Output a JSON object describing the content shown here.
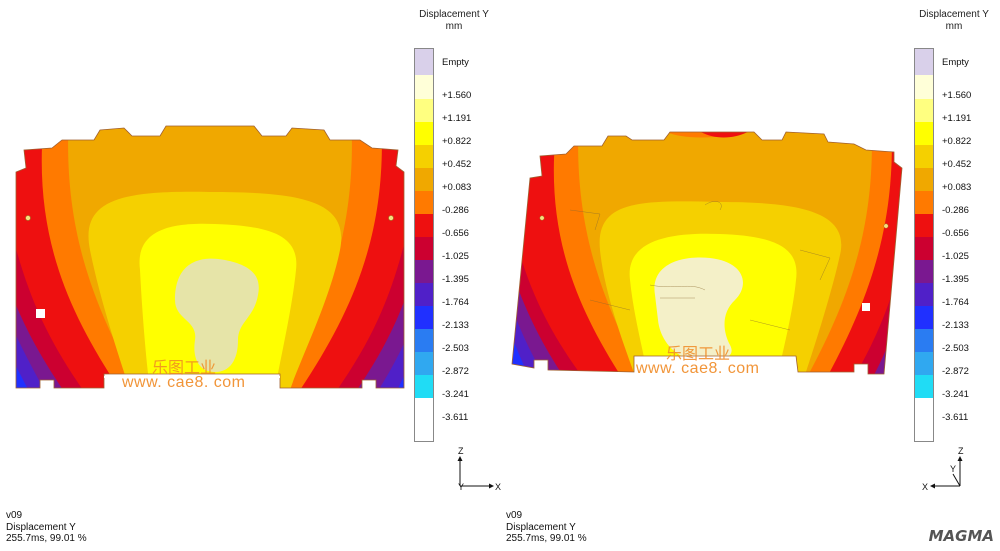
{
  "legend": {
    "title": "Displacement Y",
    "unit": "mm",
    "empty_label": "Empty",
    "values": [
      "+1.560",
      "+1.191",
      "+0.822",
      "+0.452",
      "+0.083",
      "-0.286",
      "-0.656",
      "-1.025",
      "-1.395",
      "-1.764",
      "-2.133",
      "-2.503",
      "-2.872",
      "-3.241",
      "-3.611"
    ],
    "colors": [
      "#d9d0ea",
      "#ffffd8",
      "#ffff80",
      "#ffff00",
      "#f5d000",
      "#f0a800",
      "#ff7a00",
      "#ee1010",
      "#cc0030",
      "#7a1890",
      "#5020c8",
      "#2030ff",
      "#2a7cf2",
      "#30a8f0",
      "#20dcf5"
    ]
  },
  "panels": {
    "left": {
      "name": "v09",
      "quantity": "Displacement Y",
      "time": "255.7ms, 99.01 %",
      "axis": {
        "up": "Z",
        "right": "X",
        "depth": "Y"
      }
    },
    "right": {
      "name": "v09",
      "quantity": "Displacement Y",
      "time": "255.7ms, 99.01 %",
      "axis": {
        "up": "Z",
        "left": "X",
        "depth": "Y"
      }
    }
  },
  "watermark": {
    "cn": "乐图工业",
    "url": "www. cae8. com"
  },
  "logo": {
    "text": "MAGMA"
  }
}
